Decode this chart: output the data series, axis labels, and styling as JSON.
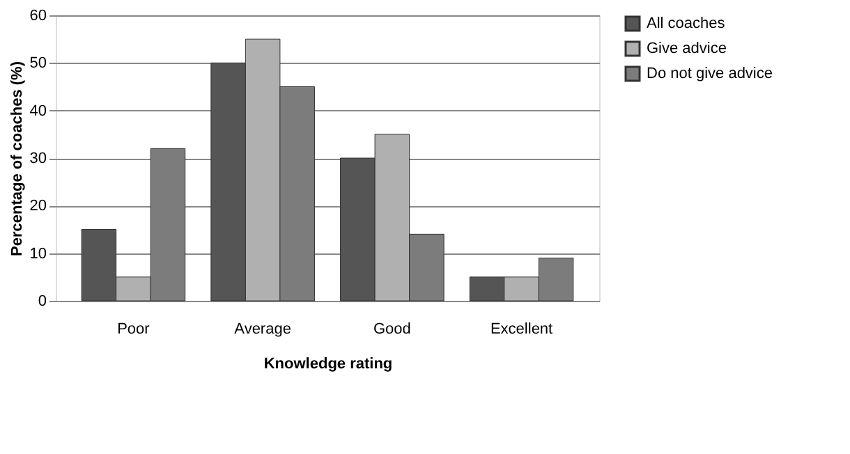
{
  "chart_data": {
    "type": "bar",
    "xlabel": "Knowledge rating",
    "ylabel": "Percentage of coaches (%)",
    "categories": [
      "Poor",
      "Average",
      "Good",
      "Excellent"
    ],
    "series": [
      {
        "name": "All coaches",
        "color": "#555555",
        "values": [
          15,
          50,
          30,
          5
        ]
      },
      {
        "name": "Give advice",
        "color": "#b0b0b0",
        "values": [
          5,
          55,
          35,
          5
        ]
      },
      {
        "name": "Do not give advice",
        "color": "#7c7c7c",
        "values": [
          32,
          45,
          14,
          9
        ]
      }
    ],
    "ylim": [
      0,
      60
    ],
    "yticks": [
      0,
      10,
      20,
      30,
      40,
      50,
      60
    ],
    "grid": "y",
    "legend": "right"
  }
}
